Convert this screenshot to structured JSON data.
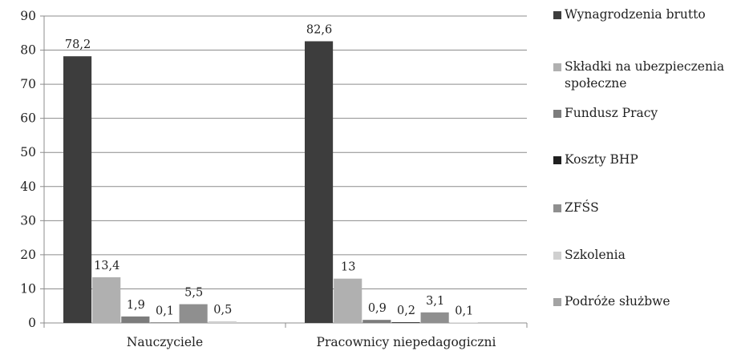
{
  "chart_data": {
    "type": "bar",
    "categories": [
      "Nauczyciele",
      "Pracownicy niepedagogiczni"
    ],
    "series": [
      {
        "name": "Wynagrodzenia brutto",
        "color": "#3d3d3d",
        "values": [
          78.2,
          82.6
        ],
        "labels": [
          "78,2",
          "82,6"
        ]
      },
      {
        "name": "Składki na ubezpieczenia społeczne",
        "color": "#b0b0b0",
        "values": [
          13.4,
          13.0
        ],
        "labels": [
          "13,4",
          "13"
        ]
      },
      {
        "name": "Fundusz Pracy",
        "color": "#7c7c7c",
        "values": [
          1.9,
          0.9
        ],
        "labels": [
          "1,9",
          "0,9"
        ]
      },
      {
        "name": "Koszty BHP",
        "color": "#1f1f1f",
        "values": [
          0.1,
          0.2
        ],
        "labels": [
          "0,1",
          "0,2"
        ]
      },
      {
        "name": "ZFŚS",
        "color": "#8f8f8f",
        "values": [
          5.5,
          3.1
        ],
        "labels": [
          "5,5",
          "3,1"
        ]
      },
      {
        "name": "Szkolenia",
        "color": "#d0d0d0",
        "values": [
          0.5,
          0.1
        ],
        "labels": [
          "0,5",
          "0,1"
        ]
      },
      {
        "name": "Podróże służbwe",
        "color": "#a3a3a3",
        "values": [
          0.0,
          0.0
        ],
        "labels": [
          "",
          ""
        ]
      }
    ],
    "ylim": [
      0,
      90
    ],
    "yticks": [
      0,
      10,
      20,
      30,
      40,
      50,
      60,
      70,
      80,
      90
    ],
    "grid": true,
    "legend": "right",
    "title": "",
    "xlabel": "",
    "ylabel": ""
  }
}
